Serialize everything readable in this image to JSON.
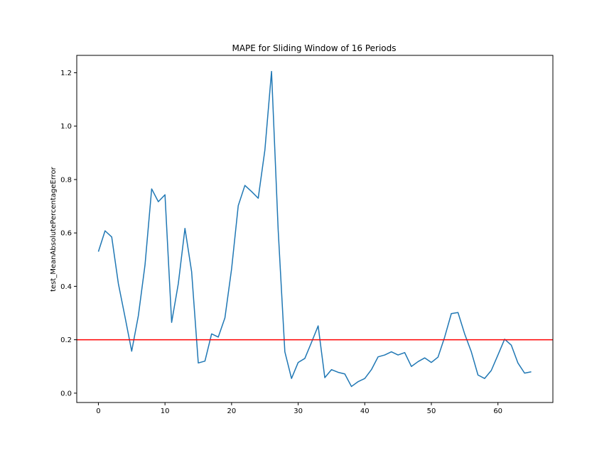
{
  "chart_data": {
    "type": "line",
    "title": "MAPE for Sliding Window of 16 Periods",
    "xlabel": "",
    "ylabel": "test_MeanAbsolutePercentageError",
    "xlim": [
      -3.25,
      68.25
    ],
    "ylim": [
      -0.035,
      1.265
    ],
    "xticks": [
      0,
      10,
      20,
      30,
      40,
      50,
      60
    ],
    "yticks": [
      0.0,
      0.2,
      0.4,
      0.6,
      0.8,
      1.0,
      1.2
    ],
    "ytick_labels": [
      "0.0",
      "0.2",
      "0.4",
      "0.6",
      "0.8",
      "1.0",
      "1.2"
    ],
    "grid": false,
    "series": [
      {
        "color": "#1f77b4",
        "x": [
          0,
          1,
          2,
          3,
          4,
          5,
          6,
          7,
          8,
          9,
          10,
          11,
          12,
          13,
          14,
          15,
          16,
          17,
          18,
          19,
          20,
          21,
          22,
          23,
          24,
          25,
          26,
          27,
          28,
          29,
          30,
          31,
          32,
          33,
          34,
          35,
          36,
          37,
          38,
          39,
          40,
          41,
          42,
          43,
          44,
          45,
          46,
          47,
          48,
          49,
          50,
          51,
          52,
          53,
          54,
          55,
          56,
          57,
          58,
          59,
          60,
          61,
          62,
          63,
          64,
          65
        ],
        "values": [
          0.53,
          0.608,
          0.585,
          0.41,
          0.285,
          0.157,
          0.29,
          0.48,
          0.765,
          0.717,
          0.743,
          0.265,
          0.41,
          0.617,
          0.455,
          0.113,
          0.12,
          0.222,
          0.21,
          0.282,
          0.465,
          0.702,
          0.778,
          0.755,
          0.73,
          0.91,
          1.205,
          0.61,
          0.155,
          0.055,
          0.115,
          0.13,
          0.19,
          0.252,
          0.058,
          0.088,
          0.078,
          0.072,
          0.025,
          0.043,
          0.055,
          0.088,
          0.136,
          0.143,
          0.155,
          0.143,
          0.152,
          0.1,
          0.118,
          0.132,
          0.115,
          0.135,
          0.21,
          0.298,
          0.302,
          0.222,
          0.155,
          0.068,
          0.055,
          0.085,
          0.143,
          0.202,
          0.18,
          0.113,
          0.075,
          0.08
        ]
      }
    ],
    "reference_line": {
      "y": 0.2,
      "color": "#ff0000"
    },
    "frame_color": "#000000"
  }
}
